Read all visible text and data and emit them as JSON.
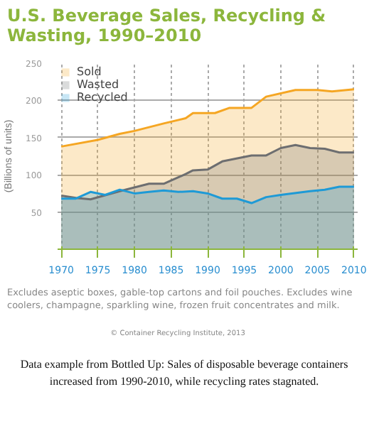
{
  "chart_data": {
    "type": "area",
    "title": "U.S. Beverage Sales, Recycling & Wasting, 1990–2010",
    "ylabel": "(Billions of units)",
    "xlim": [
      1969.5,
      2010.5
    ],
    "xticks": [
      1970,
      1975,
      1980,
      1985,
      1990,
      1995,
      2000,
      2005,
      2010
    ],
    "ylim": [
      0,
      250
    ],
    "yticks": [
      50,
      100,
      150,
      200,
      250
    ],
    "grid": true,
    "legend": "top left",
    "series": [
      {
        "name": "Sold",
        "color": "#f5a623",
        "x": [
          1970,
          1975,
          1978,
          1980,
          1984,
          1987,
          1988,
          1991,
          1993,
          1996,
          1998,
          2002,
          2005,
          2007,
          2010
        ],
        "values": [
          138,
          147,
          155,
          159,
          169,
          176,
          183,
          183,
          190,
          190,
          205,
          214,
          214,
          212,
          215
        ]
      },
      {
        "name": "Wasted",
        "color": "#6d6e70",
        "x": [
          1970,
          1972,
          1974,
          1978,
          1980,
          1982,
          1984,
          1987,
          1988,
          1990,
          1992,
          1996,
          1998,
          2000,
          2002,
          2004,
          2006,
          2008,
          2010
        ],
        "values": [
          72,
          69,
          67,
          78,
          83,
          88,
          88,
          101,
          106,
          107,
          118,
          126,
          126,
          136,
          140,
          136,
          135,
          130,
          130
        ]
      },
      {
        "name": "Recycled",
        "color": "#1e9ad6",
        "x": [
          1970,
          1972,
          1974,
          1976,
          1978,
          1980,
          1982,
          1984,
          1986,
          1988,
          1990,
          1992,
          1994,
          1996,
          1998,
          2000,
          2004,
          2006,
          2008,
          2010
        ],
        "values": [
          68,
          68,
          77,
          73,
          80,
          75,
          77,
          79,
          77,
          78,
          75,
          68,
          68,
          62,
          70,
          73,
          78,
          80,
          84,
          84
        ]
      }
    ],
    "annotations": [
      "Excludes aseptic boxes, gable-top cartons and foil pouches. Excludes wine coolers, champagne, sparkling wine, frozen fruit concentrates and milk.",
      "© Container Recycling Institute, 2013",
      "Data example from Bottled Up: Sales of disposable beverage containers increased from 1990-2010, while recycling rates stagnated."
    ]
  }
}
